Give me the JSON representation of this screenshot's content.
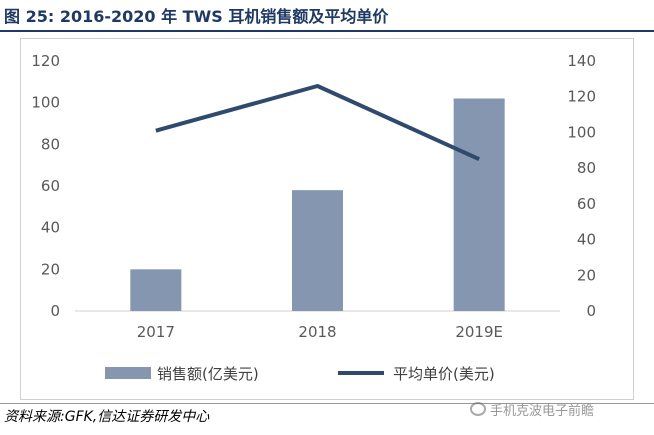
{
  "header": {
    "figure_label": "图 25:",
    "title": "2016-2020 年 TWS 耳机销售额及平均单价"
  },
  "source": "资料来源:GFK,信达证券研发中心",
  "watermark": "手机克波电子前瞻",
  "colors": {
    "bar": "#8496b0",
    "line": "#2f4a6d",
    "title": "#1f3864"
  },
  "chart_data": {
    "type": "bar+line",
    "categories": [
      "2017",
      "2018",
      "2019E"
    ],
    "series": [
      {
        "name": "销售额(亿美元)",
        "type": "bar",
        "axis": "left",
        "values": [
          20,
          58,
          102
        ]
      },
      {
        "name": "平均单价(美元)",
        "type": "line",
        "axis": "right",
        "values": [
          101,
          126,
          85
        ]
      }
    ],
    "y_left": {
      "min": 0,
      "max": 120,
      "ticks": [
        0,
        20,
        40,
        60,
        80,
        100,
        120
      ]
    },
    "y_right": {
      "min": 0,
      "max": 140,
      "ticks": [
        0,
        20,
        40,
        60,
        80,
        100,
        120,
        140
      ]
    },
    "legend_position": "bottom",
    "grid": false
  }
}
